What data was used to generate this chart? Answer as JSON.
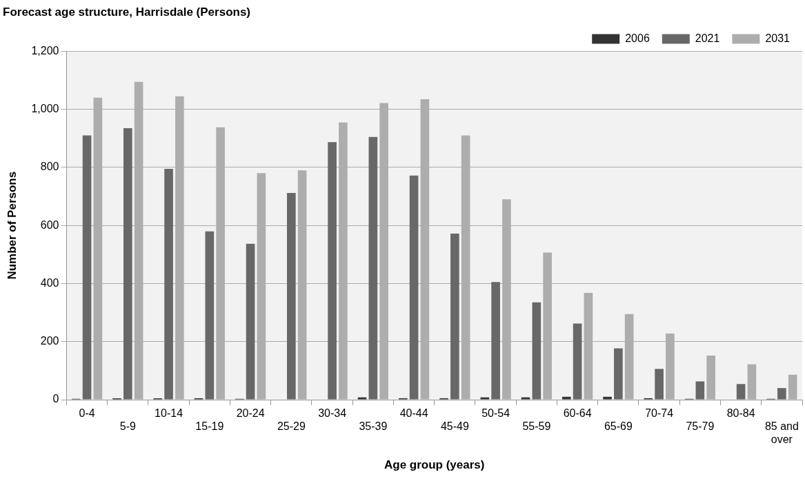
{
  "chart_data": {
    "type": "bar",
    "title": "Forecast age structure, Harrisdale (Persons)",
    "xlabel": "Age group (years)",
    "ylabel": "Number of Persons",
    "categories": [
      "0-4",
      "5-9",
      "10-14",
      "15-19",
      "20-24",
      "25-29",
      "30-34",
      "35-39",
      "40-44",
      "45-49",
      "50-54",
      "55-59",
      "60-64",
      "65-69",
      "70-74",
      "75-79",
      "80-84",
      "85 and over"
    ],
    "series": [
      {
        "name": "2006",
        "color": "#333333",
        "values": [
          3,
          5,
          5,
          5,
          3,
          0,
          0,
          8,
          5,
          5,
          8,
          8,
          10,
          10,
          5,
          3,
          0,
          3
        ]
      },
      {
        "name": "2021",
        "color": "#686868",
        "values": [
          910,
          935,
          795,
          580,
          537,
          712,
          887,
          905,
          772,
          572,
          405,
          335,
          262,
          177,
          106,
          63,
          54,
          40
        ]
      },
      {
        "name": "2031",
        "color": "#adadad",
        "values": [
          1040,
          1095,
          1045,
          938,
          780,
          790,
          955,
          1022,
          1035,
          910,
          690,
          507,
          368,
          295,
          228,
          152,
          122,
          86
        ]
      }
    ],
    "ylim": [
      0,
      1200
    ],
    "yticks": [
      {
        "value": 0,
        "label": "0"
      },
      {
        "value": 200,
        "label": "200"
      },
      {
        "value": 400,
        "label": "400"
      },
      {
        "value": 600,
        "label": "600"
      },
      {
        "value": 800,
        "label": "800"
      },
      {
        "value": 1000,
        "label": "1,000"
      },
      {
        "value": 1200,
        "label": "1,200"
      }
    ],
    "grid": "y",
    "legend": "top right"
  }
}
